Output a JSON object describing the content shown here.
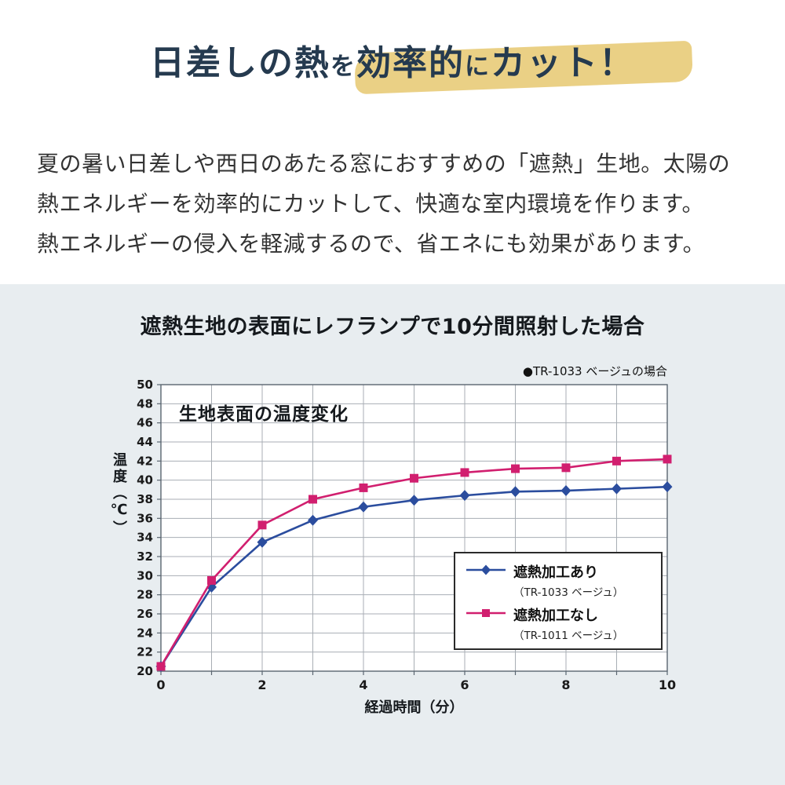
{
  "title": {
    "part1": "日差しの熱",
    "part2": "を",
    "part3": "効率的",
    "part4": "に",
    "part5": "カット！"
  },
  "body": {
    "line1": "夏の暑い日差しや西日のあたる窓におすすめの「遮熱」生地。太陽の",
    "line2": "熱エネルギーを効率的にカットして、快適な室内環境を作ります。",
    "line3": "熱エネルギーの侵入を軽減するので、省エネにも効果があります。"
  },
  "chart_section": {
    "heading": "遮熱生地の表面にレフランプで10分間照射した場合",
    "note": "●TR-1033 ベージュの場合",
    "inner_title": "生地表面の温度変化"
  },
  "chart_data": {
    "type": "line",
    "title": "生地表面の温度変化",
    "xlabel": "経過時間（分）",
    "ylabel": "温度（℃）",
    "x": [
      0,
      1,
      2,
      3,
      4,
      5,
      6,
      7,
      8,
      9,
      10
    ],
    "xlim": [
      0,
      10
    ],
    "ylim": [
      20,
      50
    ],
    "ytick_step": 2,
    "xticks": [
      0,
      2,
      4,
      6,
      8,
      10
    ],
    "grid": true,
    "legend_position": "inside-bottom-right",
    "series": [
      {
        "name": "遮熱加工あり",
        "sub": "（TR-1033 ベージュ）",
        "color": "#2b4d9e",
        "marker": "diamond",
        "values": [
          20.5,
          28.8,
          33.5,
          35.8,
          37.2,
          37.9,
          38.4,
          38.8,
          38.9,
          39.1,
          39.3
        ]
      },
      {
        "name": "遮熱加工なし",
        "sub": "（TR-1011 ベージュ）",
        "color": "#d11f6f",
        "marker": "square",
        "values": [
          20.5,
          29.5,
          35.3,
          38.0,
          39.2,
          40.2,
          40.8,
          41.2,
          41.3,
          42.0,
          42.2
        ]
      }
    ]
  },
  "colors": {
    "title_text": "#253a4f",
    "highlight": "#e6c870",
    "section_bg": "#e8edf0",
    "plot_bg": "#ffffff",
    "gridline": "#a8aeb4",
    "frame": "#5a6570"
  }
}
